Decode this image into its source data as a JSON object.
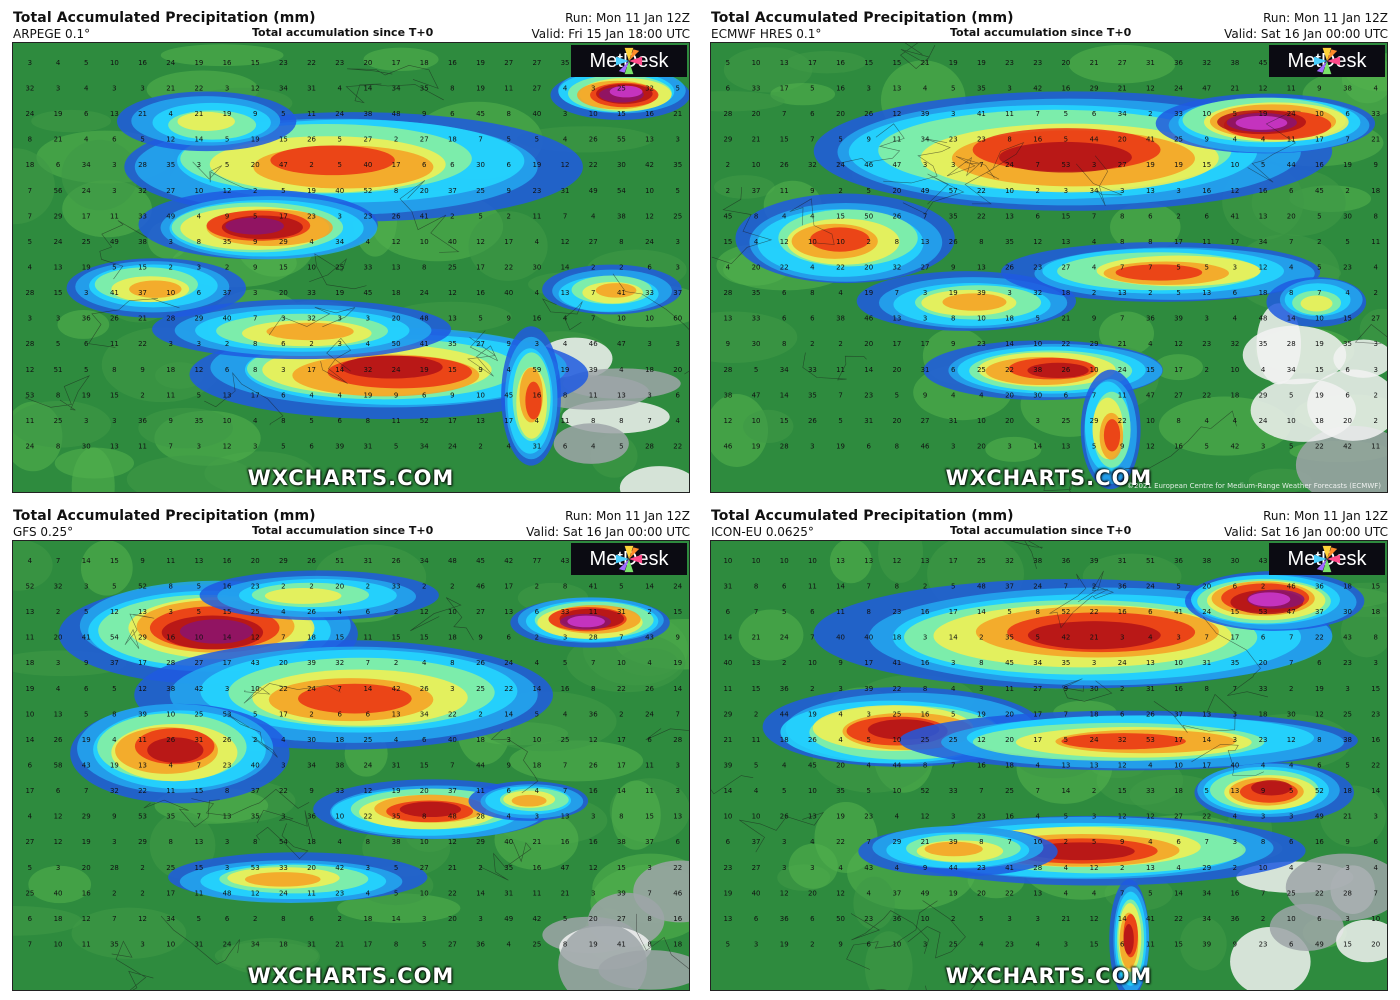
{
  "logo_text": "MetDesk",
  "watermark": "WXCHARTS.COM",
  "ecmwf_credit": "©2021 European Centre for Medium-Range Weather Forecasts (ECMWF)",
  "panels": [
    {
      "title": "Total Accumulated Precipitation (mm)",
      "model": "ARPEGE 0.1°",
      "accumulation": "Total accumulation since T+0",
      "run": "Run: Mon 11 Jan 12Z",
      "valid": "Valid: Fri 15 Jan 18:00 UTC"
    },
    {
      "title": "Total Accumulated Precipitation (mm)",
      "model": "ECMWF HRES 0.1°",
      "accumulation": "Total accumulation since T+0",
      "run": "Run: Mon 11 Jan 12Z",
      "valid": "Valid: Sat 16 Jan 00:00 UTC"
    },
    {
      "title": "Total Accumulated Precipitation (mm)",
      "model": "GFS 0.25°",
      "accumulation": "Total accumulation since T+0",
      "run": "Run: Mon 11 Jan 12Z",
      "valid": "Valid: Sat 16 Jan 00:00 UTC"
    },
    {
      "title": "Total Accumulated Precipitation (mm)",
      "model": "ICON-EU 0.0625°",
      "accumulation": "Total accumulation since T+0",
      "run": "Run: Mon 11 Jan 12Z",
      "valid": "Valid: Sat 16 Jan 00:00 UTC"
    }
  ],
  "grid_values": [
    [
      "3",
      "4",
      "5",
      "10",
      "16",
      "24",
      "19",
      "16",
      "15",
      "23",
      "22",
      "23",
      "20",
      "17",
      "18",
      "16",
      "19",
      "27",
      "27",
      "35",
      "27",
      "24",
      "29",
      "21"
    ],
    [
      "5",
      "10",
      "13",
      "17",
      "16",
      "15",
      "15",
      "21",
      "19",
      "19",
      "23",
      "23",
      "20",
      "21",
      "27",
      "31",
      "36",
      "32",
      "38",
      "45",
      "38",
      "35",
      "27",
      "29"
    ],
    [
      "4",
      "7",
      "14",
      "15",
      "9",
      "11",
      "13",
      "16",
      "20",
      "29",
      "26",
      "51",
      "31",
      "26",
      "34",
      "48",
      "45",
      "42",
      "77",
      "43",
      "48",
      "33",
      "34",
      "33"
    ],
    [
      "10",
      "10",
      "10",
      "10",
      "13",
      "13",
      "12",
      "13",
      "17",
      "25",
      "32",
      "38",
      "36",
      "39",
      "31",
      "51",
      "36",
      "38",
      "30",
      "43",
      "37",
      "27",
      "23",
      "21"
    ]
  ],
  "color_scale": [
    "#f2f2f2",
    "#9ea5a8",
    "#2e8b3e",
    "#52b04d",
    "#1e5be0",
    "#23a8f0",
    "#24d8ff",
    "#8cf29c",
    "#f6f050",
    "#f6a023",
    "#e93214",
    "#b01018",
    "#8a1470",
    "#cc38cf",
    "#f0b8f4"
  ]
}
